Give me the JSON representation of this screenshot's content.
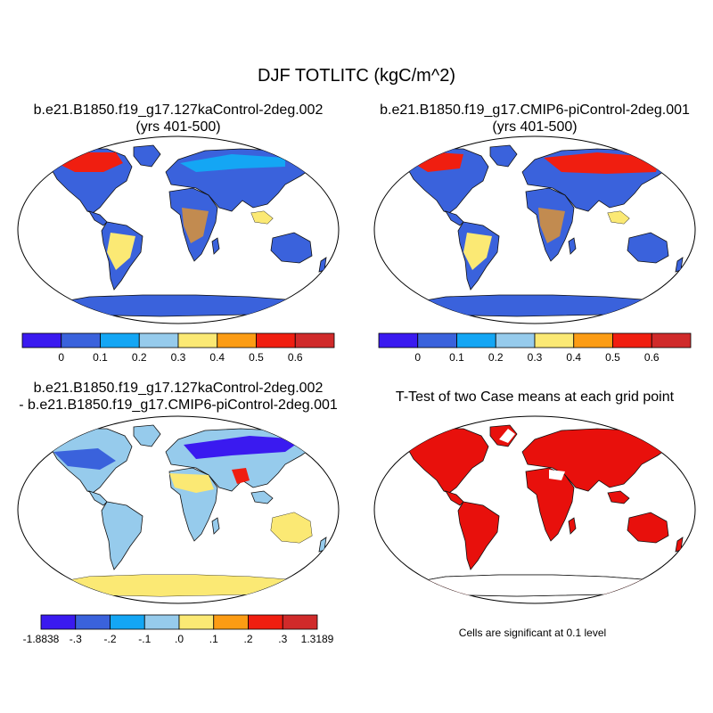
{
  "title": "DJF TOTLITC (kgC/m^2)",
  "panels": [
    {
      "id": "case1",
      "line1": "b.e21.B1850.f19_g17.127kaControl-2deg.002",
      "line2": "(yrs 401-500)"
    },
    {
      "id": "case2",
      "line1": "b.e21.B1850.f19_g17.CMIP6-piControl-2deg.001",
      "line2": "(yrs 401-500)"
    },
    {
      "id": "diff",
      "line1": "b.e21.B1850.f19_g17.127kaControl-2deg.002",
      "line2": "- b.e21.B1850.f19_g17.CMIP6-piControl-2deg.001"
    },
    {
      "id": "ttest",
      "line1": "T-Test of two Case means at each grid point",
      "line2": ""
    }
  ],
  "colorbars": {
    "main": {
      "colors": [
        "#3a1af0",
        "#3a62dc",
        "#14a6f4",
        "#96cbec",
        "#fbe974",
        "#fc9c14",
        "#f01e10",
        "#d02a2a"
      ],
      "labels": [
        "0",
        "0.1",
        "0.2",
        "0.3",
        "0.4",
        "0.5",
        "0.6"
      ]
    },
    "diff": {
      "colors": [
        "#3a1af0",
        "#3a62dc",
        "#14a6f4",
        "#96cbec",
        "#fbe974",
        "#fc9c14",
        "#f01e10",
        "#d02a2a"
      ],
      "labels": [
        "-1.8838",
        "-.3",
        "-.2",
        "-.1",
        ".0",
        ".1",
        ".2",
        ".3",
        "1.3189"
      ]
    }
  },
  "significance_note": "Cells are significant at 0.1 level"
}
